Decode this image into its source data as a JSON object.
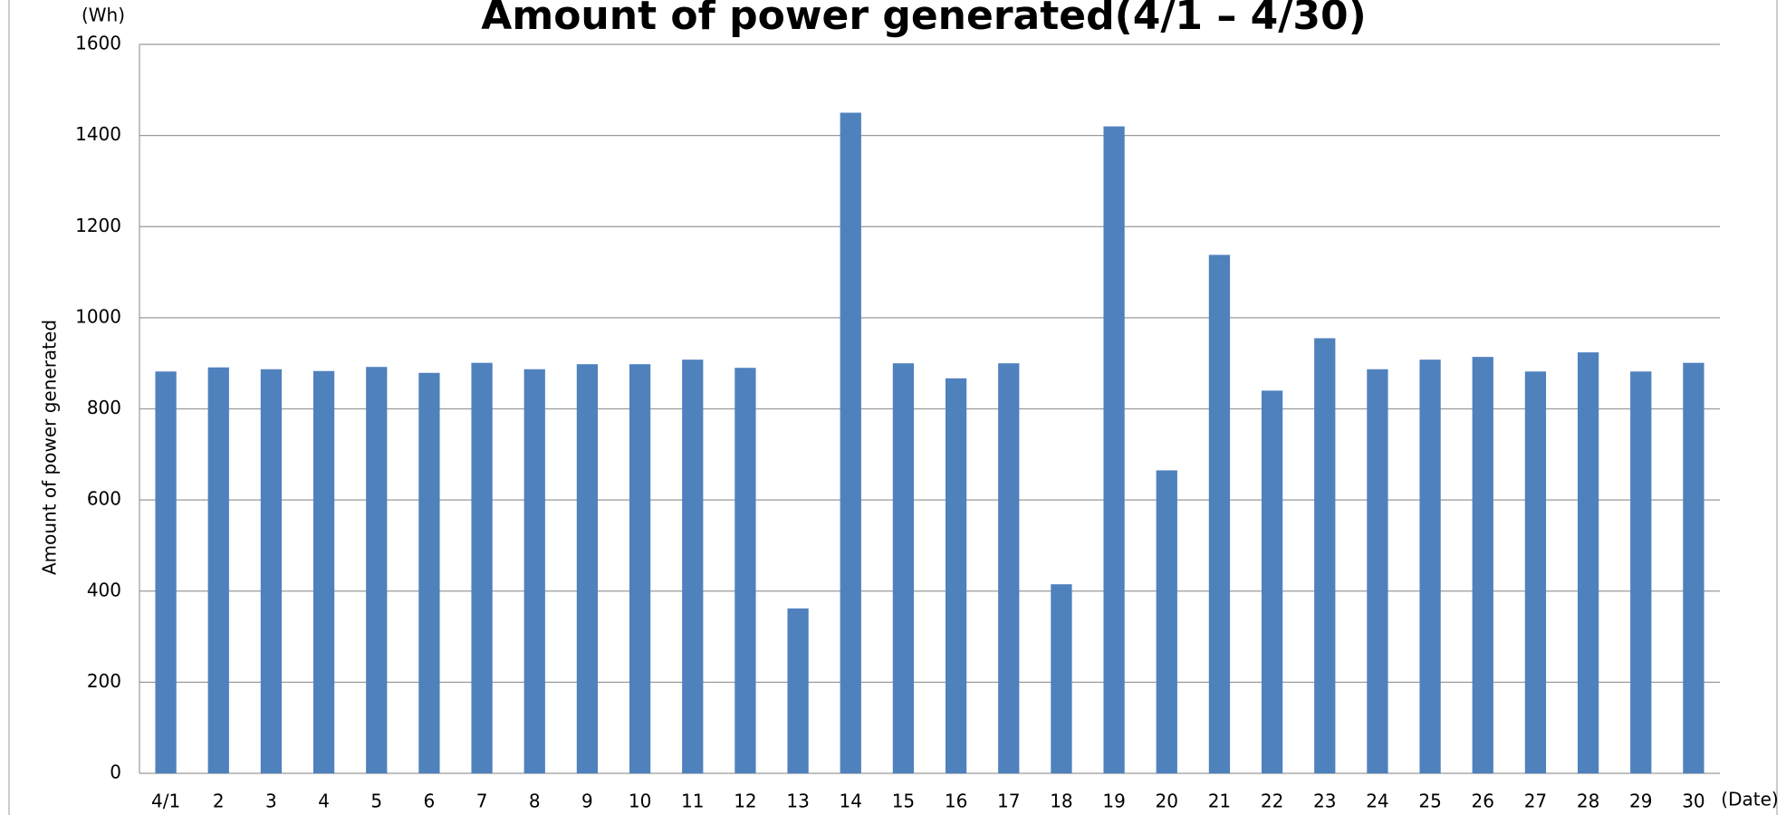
{
  "chart_data": {
    "type": "bar",
    "title": "Amount of power generated(4/1 – 4/30)",
    "y_unit": "(Wh)",
    "x_unit": "(Date)",
    "y_label": "Amount of power generated",
    "categories": [
      "4/1",
      "2",
      "3",
      "4",
      "5",
      "6",
      "7",
      "8",
      "9",
      "10",
      "11",
      "12",
      "13",
      "14",
      "15",
      "16",
      "17",
      "18",
      "19",
      "20",
      "21",
      "22",
      "23",
      "24",
      "25",
      "26",
      "27",
      "28",
      "29",
      "30"
    ],
    "values": [
      882,
      891,
      887,
      883,
      892,
      879,
      901,
      887,
      898,
      898,
      908,
      890,
      362,
      1450,
      900,
      867,
      900,
      415,
      1420,
      665,
      1138,
      840,
      955,
      887,
      908,
      914,
      882,
      924,
      882,
      901
    ],
    "color": "#4f81bd",
    "ylim": [
      0,
      1600
    ],
    "yticks": [
      0,
      200,
      400,
      600,
      800,
      1000,
      1200,
      1400,
      1600
    ],
    "grid": true
  }
}
